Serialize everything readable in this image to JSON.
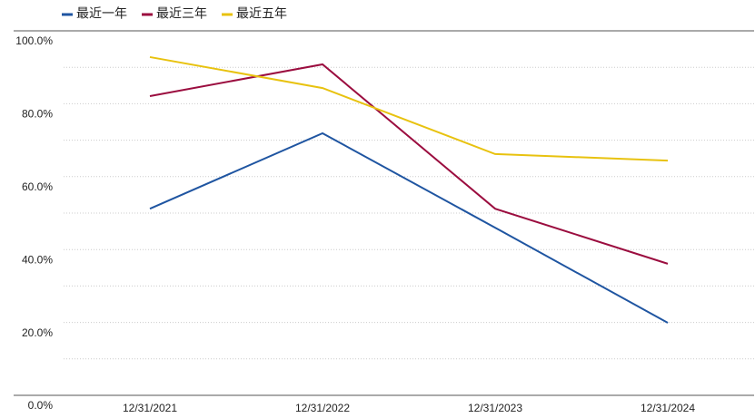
{
  "chart_data": {
    "type": "line",
    "categories": [
      "12/31/2021",
      "12/31/2022",
      "12/31/2023",
      "12/31/2024"
    ],
    "series": [
      {
        "name": "最近一年",
        "color": "#1f55a1",
        "values": [
          51.2,
          71.9,
          46,
          19.9
        ]
      },
      {
        "name": "最近三年",
        "color": "#9b0d3f",
        "values": [
          82.1,
          90.8,
          51.2,
          36.1
        ]
      },
      {
        "name": "最近五年",
        "color": "#e8c20f",
        "values": [
          92.8,
          84.3,
          66.2,
          64.4
        ]
      }
    ],
    "ylim": [
      0,
      100
    ],
    "yticks": [
      {
        "value": 0,
        "label": "0.0%"
      },
      {
        "value": 20,
        "label": "20.0%"
      },
      {
        "value": 40,
        "label": "40.0%"
      },
      {
        "value": 60,
        "label": "60.0%"
      },
      {
        "value": 80,
        "label": "80.0%"
      },
      {
        "value": 100,
        "label": "100.0%"
      }
    ],
    "minor_grid": [
      10,
      30,
      50,
      70,
      90
    ],
    "grid": true,
    "legend": "top-left"
  }
}
